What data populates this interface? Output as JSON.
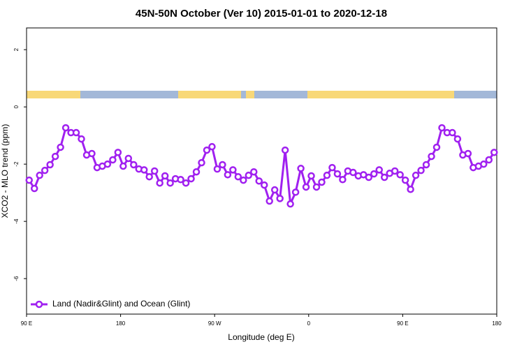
{
  "chart_data": {
    "type": "line",
    "title": "45N-50N October (Ver 10)   2015-01-01 to 2020-12-18",
    "x_label": "Longitude (deg E)",
    "y_label": "XCO2 - MLO trend (ppm)",
    "xlim": [
      90,
      540
    ],
    "ylim": [
      -7.24,
      2.76
    ],
    "xticks": [
      {
        "value": 90,
        "label": "90 E"
      },
      180,
      {
        "value": 270,
        "label": "90 W"
      },
      {
        "value": 360,
        "label": "0"
      },
      {
        "value": 450,
        "label": "90 E"
      },
      {
        "value": 540,
        "label": "180"
      }
    ],
    "yticks": [
      -6,
      -4,
      -2,
      0,
      2
    ],
    "legend": "bottom-left",
    "x": [
      92.5,
      97.5,
      102.5,
      107.5,
      112.5,
      117.5,
      122.5,
      127.5,
      132.5,
      137.5,
      142.5,
      147.5,
      152.5,
      157.5,
      162.5,
      167.5,
      172.5,
      177.5,
      182.5,
      187.5,
      192.5,
      197.5,
      202.5,
      207.5,
      212.5,
      217.5,
      222.5,
      227.5,
      232.5,
      237.5,
      242.5,
      247.5,
      252.5,
      257.5,
      262.5,
      267.5,
      272.5,
      277.5,
      282.5,
      287.5,
      292.5,
      297.5,
      302.5,
      307.5,
      312.5,
      317.5,
      322.5,
      327.5,
      332.5,
      337.5,
      342.5,
      347.5,
      352.5,
      357.5,
      362.5,
      367.5,
      372.5,
      377.5,
      382.5,
      387.5,
      392.5,
      397.5,
      402.5,
      407.5,
      412.5,
      417.5,
      422.5,
      427.5,
      432.5,
      437.5,
      442.5,
      447.5,
      452.5,
      457.5,
      462.5,
      467.5,
      472.5,
      477.5,
      482.5,
      487.5,
      492.5,
      497.5,
      502.5,
      507.5,
      512.5,
      517.5,
      522.5,
      527.5,
      532.5,
      537.5
    ],
    "series": [
      {
        "name": "Land (Nadir&Glint) and Ocean (Glint)",
        "color": "#a020f0",
        "values": [
          -2.56,
          -2.85,
          -2.39,
          -2.22,
          -2.02,
          -1.73,
          -1.41,
          -0.73,
          -0.9,
          -0.9,
          -1.12,
          -1.68,
          -1.63,
          -2.12,
          -2.07,
          -2.0,
          -1.85,
          -1.59,
          -2.07,
          -1.8,
          -2.02,
          -2.17,
          -2.2,
          -2.44,
          -2.24,
          -2.66,
          -2.41,
          -2.66,
          -2.51,
          -2.54,
          -2.66,
          -2.51,
          -2.27,
          -1.95,
          -1.51,
          -1.39,
          -2.17,
          -2.02,
          -2.37,
          -2.2,
          -2.44,
          -2.56,
          -2.39,
          -2.27,
          -2.59,
          -2.73,
          -3.29,
          -2.9,
          -3.2,
          -1.51,
          -3.39,
          -2.98,
          -2.15,
          -2.8,
          -2.41,
          -2.8,
          -2.63,
          -2.39,
          -2.12,
          -2.34,
          -2.54,
          -2.24,
          -2.29,
          -2.41,
          -2.37,
          -2.46,
          -2.34,
          -2.2,
          -2.46,
          -2.32,
          -2.24,
          -2.37,
          -2.56,
          -2.88,
          -2.39,
          -2.22,
          -2.02,
          -1.73,
          -1.41,
          -0.73,
          -0.9,
          -0.9,
          -1.12,
          -1.68,
          -1.63,
          -2.12,
          -2.07,
          -2.0,
          -1.85,
          -1.59
        ]
      }
    ]
  }
}
